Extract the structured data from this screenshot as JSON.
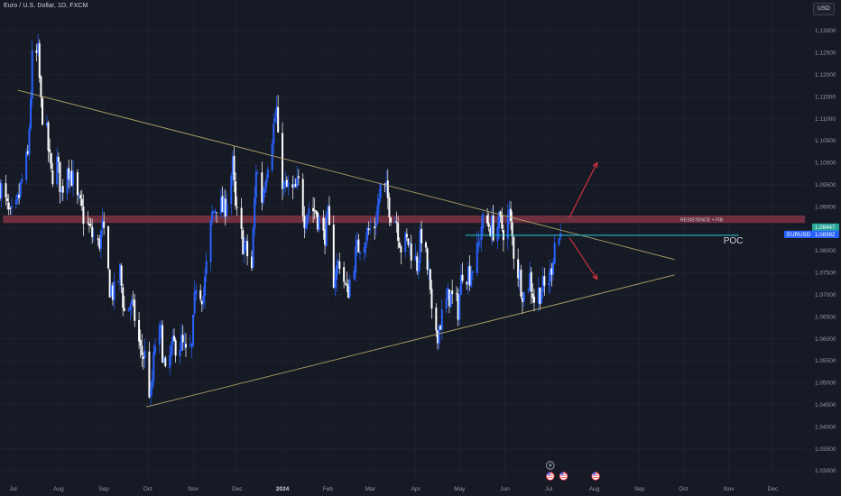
{
  "header": {
    "symbol_title": "Euro / U.S. Dollar, 1D, FXCM",
    "currency_button": "USD"
  },
  "chart_data": {
    "type": "candlestick",
    "symbol": "EURUSD",
    "title": "Euro / U.S. Dollar, 1D, FXCM",
    "currency": "USD",
    "y_axis": {
      "range": [
        1.0275,
        1.135
      ],
      "ticks": [
        "1.13000",
        "1.12500",
        "1.12000",
        "1.11500",
        "1.11000",
        "1.10500",
        "1.10000",
        "1.09500",
        "1.09000",
        "1.08500",
        "1.08000",
        "1.07500",
        "1.07000",
        "1.06500",
        "1.06000",
        "1.05500",
        "1.05000",
        "1.04500",
        "1.04000",
        "1.03500",
        "1.03000"
      ]
    },
    "x_axis": {
      "range": [
        "2023-06-22",
        "2024-12-31"
      ],
      "ticks": [
        {
          "label": "Jul",
          "date": "2023-07-01",
          "bold": false
        },
        {
          "label": "Aug",
          "date": "2023-08-01",
          "bold": false
        },
        {
          "label": "Sep",
          "date": "2023-09-01",
          "bold": false
        },
        {
          "label": "Oct",
          "date": "2023-10-01",
          "bold": false
        },
        {
          "label": "Nov",
          "date": "2023-11-01",
          "bold": false
        },
        {
          "label": "Dec",
          "date": "2023-12-01",
          "bold": false
        },
        {
          "label": "2024",
          "date": "2024-01-01",
          "bold": true
        },
        {
          "label": "Feb",
          "date": "2024-02-01",
          "bold": false
        },
        {
          "label": "Mar",
          "date": "2024-03-01",
          "bold": false
        },
        {
          "label": "Apr",
          "date": "2024-04-01",
          "bold": false
        },
        {
          "label": "May",
          "date": "2024-05-01",
          "bold": false
        },
        {
          "label": "Jun",
          "date": "2024-06-01",
          "bold": false
        },
        {
          "label": "Jul",
          "date": "2024-07-01",
          "bold": false
        },
        {
          "label": "Aug",
          "date": "2024-08-01",
          "bold": false
        },
        {
          "label": "Sep",
          "date": "2024-09-01",
          "bold": false
        },
        {
          "label": "Oct",
          "date": "2024-10-01",
          "bold": false
        },
        {
          "label": "Nov",
          "date": "2024-11-01",
          "bold": false
        },
        {
          "label": "Dec",
          "date": "2024-12-01",
          "bold": false
        }
      ]
    },
    "price_path": [
      [
        "2023-06-22",
        1.095
      ],
      [
        "2023-06-26",
        1.0905
      ],
      [
        "2023-06-29",
        1.087
      ],
      [
        "2023-07-03",
        1.089
      ],
      [
        "2023-07-07",
        1.096
      ],
      [
        "2023-07-11",
        1.101
      ],
      [
        "2023-07-14",
        1.123
      ],
      [
        "2023-07-18",
        1.1245
      ],
      [
        "2023-07-20",
        1.113
      ],
      [
        "2023-07-24",
        1.106
      ],
      [
        "2023-07-27",
        1.097
      ],
      [
        "2023-07-31",
        1.1
      ],
      [
        "2023-08-03",
        1.0935
      ],
      [
        "2023-08-07",
        1.1
      ],
      [
        "2023-08-10",
        1.097
      ],
      [
        "2023-08-14",
        1.091
      ],
      [
        "2023-08-18",
        1.088
      ],
      [
        "2023-08-23",
        1.084
      ],
      [
        "2023-08-28",
        1.081
      ],
      [
        "2023-08-31",
        1.085
      ],
      [
        "2023-09-05",
        1.072
      ],
      [
        "2023-09-08",
        1.07
      ],
      [
        "2023-09-12",
        1.075
      ],
      [
        "2023-09-15",
        1.066
      ],
      [
        "2023-09-19",
        1.068
      ],
      [
        "2023-09-22",
        1.065
      ],
      [
        "2023-09-26",
        1.057
      ],
      [
        "2023-09-29",
        1.056
      ],
      [
        "2023-10-03",
        1.046
      ],
      [
        "2023-10-06",
        1.059
      ],
      [
        "2023-10-10",
        1.061
      ],
      [
        "2023-10-13",
        1.051
      ],
      [
        "2023-10-17",
        1.057
      ],
      [
        "2023-10-20",
        1.059
      ],
      [
        "2023-10-24",
        1.059
      ],
      [
        "2023-10-27",
        1.056
      ],
      [
        "2023-10-31",
        1.0575
      ],
      [
        "2023-11-03",
        1.073
      ],
      [
        "2023-11-08",
        1.07
      ],
      [
        "2023-11-14",
        1.088
      ],
      [
        "2023-11-17",
        1.091
      ],
      [
        "2023-11-22",
        1.089
      ],
      [
        "2023-11-28",
        1.099
      ],
      [
        "2023-11-30",
        1.089
      ],
      [
        "2023-12-04",
        1.083
      ],
      [
        "2023-12-07",
        1.08
      ],
      [
        "2023-12-11",
        1.076
      ],
      [
        "2023-12-14",
        1.099
      ],
      [
        "2023-12-18",
        1.092
      ],
      [
        "2023-12-22",
        1.101
      ],
      [
        "2023-12-28",
        1.112
      ],
      [
        "2023-12-29",
        1.104
      ],
      [
        "2024-01-02",
        1.094
      ],
      [
        "2024-01-05",
        1.094
      ],
      [
        "2024-01-09",
        1.093
      ],
      [
        "2024-01-12",
        1.095
      ],
      [
        "2024-01-16",
        1.088
      ],
      [
        "2024-01-19",
        1.09
      ],
      [
        "2024-01-24",
        1.089
      ],
      [
        "2024-01-29",
        1.083
      ],
      [
        "2024-02-01",
        1.087
      ],
      [
        "2024-02-05",
        1.074
      ],
      [
        "2024-02-09",
        1.078
      ],
      [
        "2024-02-14",
        1.07
      ],
      [
        "2024-02-19",
        1.078
      ],
      [
        "2024-02-23",
        1.082
      ],
      [
        "2024-02-28",
        1.084
      ],
      [
        "2024-03-04",
        1.086
      ],
      [
        "2024-03-08",
        1.094
      ],
      [
        "2024-03-12",
        1.093
      ],
      [
        "2024-03-15",
        1.089
      ],
      [
        "2024-03-19",
        1.087
      ],
      [
        "2024-03-22",
        1.081
      ],
      [
        "2024-03-27",
        1.082
      ],
      [
        "2024-04-02",
        1.077
      ],
      [
        "2024-04-05",
        1.084
      ],
      [
        "2024-04-10",
        1.074
      ],
      [
        "2024-04-12",
        1.064
      ],
      [
        "2024-04-16",
        1.062
      ],
      [
        "2024-04-19",
        1.065
      ],
      [
        "2024-04-24",
        1.07
      ],
      [
        "2024-04-30",
        1.067
      ],
      [
        "2024-05-03",
        1.076
      ],
      [
        "2024-05-08",
        1.075
      ],
      [
        "2024-05-13",
        1.079
      ],
      [
        "2024-05-16",
        1.086
      ],
      [
        "2024-05-21",
        1.086
      ],
      [
        "2024-05-24",
        1.085
      ],
      [
        "2024-05-28",
        1.086
      ],
      [
        "2024-05-31",
        1.085
      ],
      [
        "2024-06-04",
        1.088
      ],
      [
        "2024-06-07",
        1.08
      ],
      [
        "2024-06-11",
        1.074
      ],
      [
        "2024-06-14",
        1.07
      ],
      [
        "2024-06-18",
        1.074
      ],
      [
        "2024-06-21",
        1.069
      ],
      [
        "2024-06-25",
        1.071
      ],
      [
        "2024-06-28",
        1.0715
      ],
      [
        "2024-07-02",
        1.0745
      ],
      [
        "2024-07-05",
        1.082
      ],
      [
        "2024-07-09",
        1.0835
      ]
    ],
    "drawings": {
      "descending_trendline": {
        "from": [
          "2023-07-04",
          1.1165
        ],
        "to": [
          "2024-09-25",
          1.078
        ]
      },
      "ascending_trendline": {
        "from": [
          "2023-09-30",
          1.0445
        ],
        "to": [
          "2024-09-25",
          1.0745
        ]
      },
      "resistance_zone": {
        "label": "RESISTENCE + FIB",
        "top": 1.088,
        "bottom": 1.0863,
        "from": "2023-06-24",
        "to": "2024-12-31"
      },
      "poc_line": {
        "label": "POC",
        "price": 1.0835,
        "from": "2024-05-05",
        "to": "2024-10-08"
      },
      "arrow_up": {
        "from": [
          "2024-07-15",
          1.0875
        ],
        "to": [
          "2024-08-03",
          1.1
        ]
      },
      "arrow_down": {
        "from": [
          "2024-07-15",
          1.083
        ],
        "to": [
          "2024-08-03",
          1.0735
        ]
      }
    },
    "price_labels": [
      {
        "text": "1.08447",
        "price": 1.08447,
        "color": "#26a69a"
      },
      {
        "symbol": "EURUSD",
        "text": "1.08382",
        "price": 1.08382,
        "color": "#2962ff"
      }
    ],
    "event_markers": [
      {
        "icon": "lightning-icon",
        "date": "2024-07-02"
      },
      {
        "icon": "flag-us-icon",
        "date": "2024-07-02"
      },
      {
        "icon": "flag-us-icon",
        "date": "2024-07-08"
      },
      {
        "icon": "flag-us-icon",
        "date": "2024-08-02"
      }
    ],
    "colors": {
      "background": "#161a25",
      "grid": "#232633",
      "candle_up": "#2962ff",
      "candle_down": "#ffffff",
      "trendline": "#b0a36a",
      "resistance_zone": "#7e3443",
      "poc_line": "#26c6da",
      "arrows": "#f23645"
    }
  }
}
